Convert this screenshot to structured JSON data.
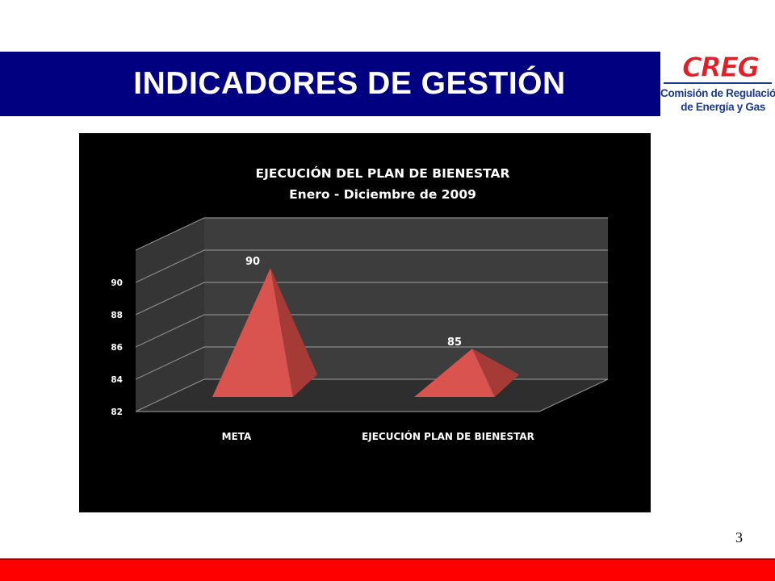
{
  "slide": {
    "title": "INDICADORES DE GESTIÓN",
    "page_number": "3",
    "logo": {
      "mark_text": "CREG",
      "line1": "Comisión de Regulación",
      "line2": "de Energía y Gas"
    },
    "colors": {
      "header_bar": "#000080",
      "footer_bar": "#ff0000",
      "logo_red": "#e31e24",
      "logo_blue": "#1a3a8c"
    }
  },
  "chart_data": {
    "type": "bar",
    "style": "3d-pyramid",
    "title": "EJECUCIÓN DEL PLAN DE BIENESTAR",
    "subtitle": "Enero - Diciembre de 2009",
    "categories": [
      "META",
      "EJECUCIÓN PLAN DE BIENESTAR"
    ],
    "values": [
      90,
      85
    ],
    "data_labels": [
      "90",
      "85"
    ],
    "ylim": [
      82,
      92
    ],
    "yticks": [
      "82",
      "84",
      "86",
      "88",
      "90"
    ],
    "grid": true,
    "legend": "none",
    "colors": {
      "background": "#000000",
      "pyramid_front": "#d9534f",
      "pyramid_side": "#a63a37",
      "wall": "#3d3d3d",
      "floor": "#2e2e2e",
      "text": "#ffffff"
    }
  }
}
